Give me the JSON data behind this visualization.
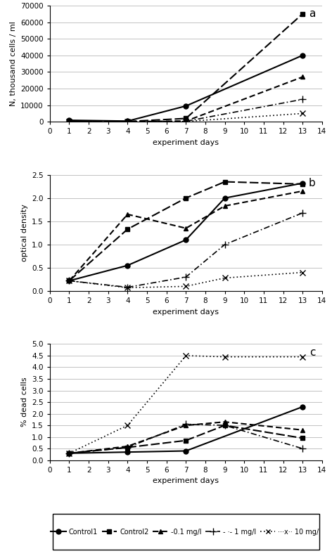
{
  "x_points": [
    1,
    4,
    7,
    9,
    13
  ],
  "panel_a": {
    "ylabel": "N, thousand cells / ml",
    "ylim": [
      0,
      70000
    ],
    "yticks": [
      0,
      10000,
      20000,
      30000,
      40000,
      50000,
      60000,
      70000
    ],
    "series": {
      "Control1": [
        900,
        400,
        9500,
        null,
        40000
      ],
      "Control2": [
        400,
        150,
        2000,
        null,
        65000
      ],
      "0.1 mg/l": [
        200,
        100,
        400,
        null,
        27000
      ],
      "1 mg/l": [
        150,
        80,
        300,
        null,
        13500
      ],
      "10 mg/l": [
        100,
        50,
        200,
        null,
        5000
      ]
    }
  },
  "panel_b": {
    "ylabel": "optical density",
    "ylim": [
      0,
      2.5
    ],
    "yticks": [
      0,
      0.5,
      1.0,
      1.5,
      2.0,
      2.5
    ],
    "series": {
      "Control1": [
        0.22,
        0.55,
        1.1,
        2.0,
        2.32
      ],
      "Control2": [
        0.22,
        1.33,
        2.0,
        2.35,
        2.3
      ],
      "0.1 mg/l": [
        0.22,
        1.65,
        1.35,
        1.83,
        2.15
      ],
      "1 mg/l": [
        0.22,
        0.08,
        0.3,
        1.0,
        1.68
      ],
      "10 mg/l": [
        0.22,
        0.07,
        0.1,
        0.28,
        0.4
      ]
    }
  },
  "panel_c": {
    "ylabel": "% dead cells",
    "ylim": [
      0,
      5
    ],
    "yticks": [
      0,
      0.5,
      1.0,
      1.5,
      2.0,
      2.5,
      3.0,
      3.5,
      4.0,
      4.5,
      5.0
    ],
    "series": {
      "Control1": [
        0.3,
        0.35,
        0.4,
        null,
        2.3
      ],
      "Control2": [
        0.3,
        0.55,
        0.85,
        1.5,
        0.95
      ],
      "0.1 mg/l": [
        0.3,
        0.6,
        1.5,
        1.65,
        1.3
      ],
      "1 mg/l": [
        0.3,
        0.55,
        1.55,
        1.5,
        0.5
      ],
      "10 mg/l": [
        0.3,
        1.5,
        4.5,
        4.45,
        4.45
      ]
    }
  },
  "xlabel": "experiment days",
  "xlim": [
    0,
    14
  ],
  "xticks": [
    0,
    1,
    2,
    3,
    4,
    5,
    6,
    7,
    8,
    9,
    10,
    11,
    12,
    13,
    14
  ],
  "panel_labels": [
    "a",
    "b",
    "c"
  ],
  "background_color": "#ffffff"
}
